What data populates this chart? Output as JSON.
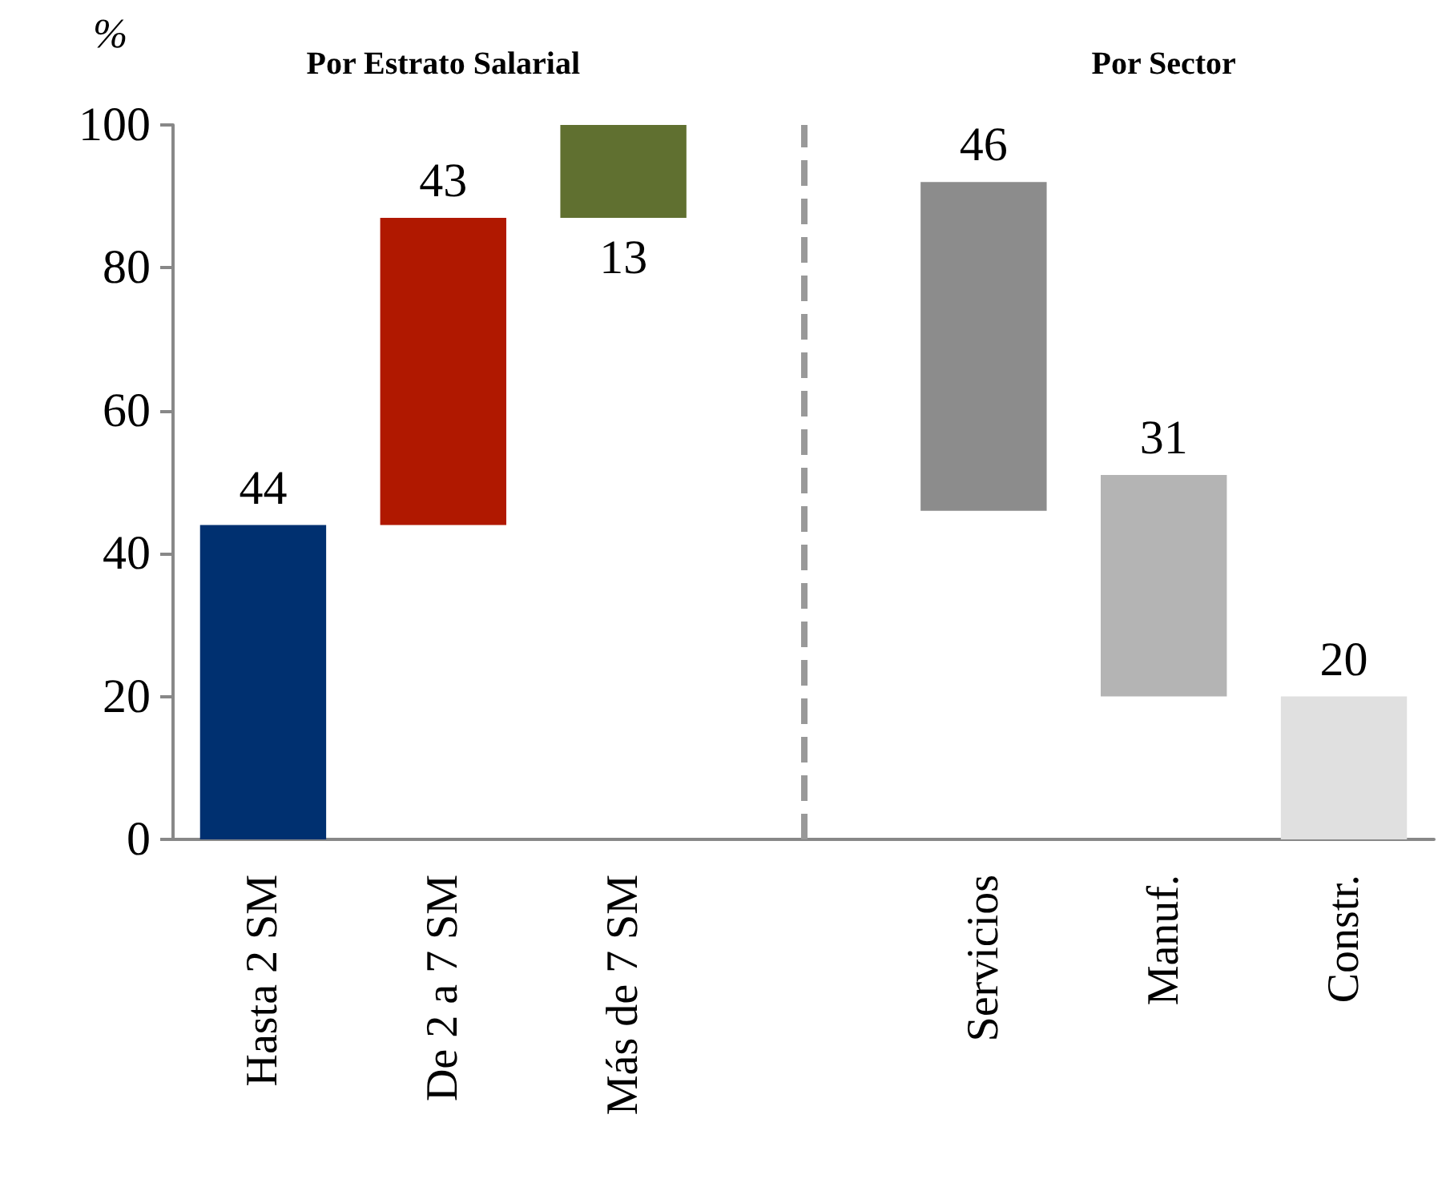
{
  "chart_data": {
    "type": "bar",
    "ylabel": "%",
    "annotations": [
      "Por Estrato Salarial",
      "Por Sector"
    ],
    "categories": [
      "Hasta 2 SM",
      "De 2 a 7 SM",
      "Más de 7 SM",
      null,
      "Servicios",
      "Manuf.",
      "Constr."
    ],
    "values": [
      44,
      43,
      13,
      null,
      46,
      31,
      20
    ],
    "base": [
      0,
      44,
      87,
      null,
      46,
      20,
      0
    ],
    "colors": [
      "#003070",
      "#b01800",
      "#607030",
      null,
      "#8c8c8c",
      "#b4b4b4",
      "#e0e0e0"
    ],
    "ylim": [
      0,
      100
    ],
    "yticks": [
      0,
      20,
      40,
      60,
      80,
      100
    ],
    "data_labels": true,
    "ref_lines": [
      {
        "axis": "x",
        "value": null,
        "color": "#999999",
        "line_style": "dashed"
      }
    ]
  }
}
